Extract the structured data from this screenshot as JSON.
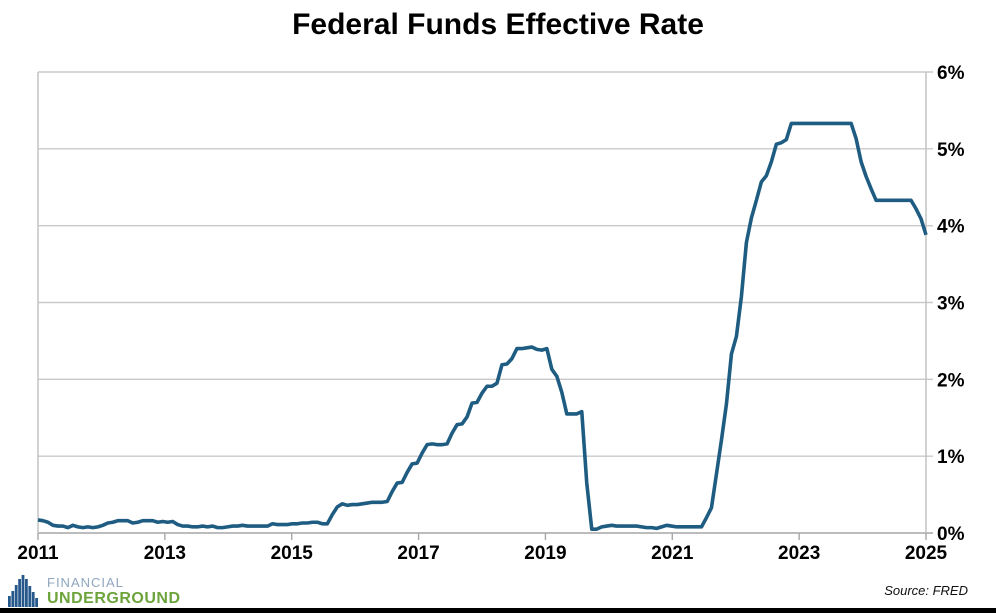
{
  "page": {
    "title": "Federal Funds Effective Rate",
    "source_note": "Source: FRED"
  },
  "logo": {
    "line1": "FINANCIAL",
    "line2": "UNDERGROUND",
    "icon": "bar-skyline-icon",
    "icon_color": "#26588C",
    "line1_color": "#8FA6BF",
    "line2_color": "#6CA43B"
  },
  "colors": {
    "line": "#1F5C82",
    "gridline": "#C9C9C9",
    "axis_border": "#BFBFBF",
    "axis_line": "#A6A6A6",
    "tick": "#A6A6A6",
    "label": "#000000",
    "footer_bar": "#000000"
  },
  "chart_data": {
    "type": "line",
    "title": "Federal Funds Effective Rate",
    "xlabel": "",
    "ylabel": "",
    "ylim": [
      0,
      6
    ],
    "xlim": [
      "2011-01",
      "2025-11"
    ],
    "grid": "horizontal",
    "legend": "none",
    "source": "Source: FRED",
    "x_tick_labels": [
      "2011",
      "2013",
      "2015",
      "2017",
      "2019",
      "2021",
      "2023",
      "2025"
    ],
    "y_tick_labels": [
      "6%",
      "5%",
      "4%",
      "3%",
      "2%",
      "1%",
      "0%"
    ],
    "series": [
      {
        "name": "Federal Funds Effective Rate",
        "unit": "percent",
        "frequency": "monthly",
        "start": "2011-01",
        "end": "2025-11",
        "values": [
          0.17,
          0.16,
          0.14,
          0.1,
          0.09,
          0.09,
          0.07,
          0.1,
          0.08,
          0.07,
          0.08,
          0.07,
          0.08,
          0.1,
          0.13,
          0.14,
          0.16,
          0.16,
          0.16,
          0.13,
          0.14,
          0.16,
          0.16,
          0.16,
          0.14,
          0.15,
          0.14,
          0.15,
          0.11,
          0.09,
          0.09,
          0.08,
          0.08,
          0.09,
          0.08,
          0.09,
          0.07,
          0.07,
          0.08,
          0.09,
          0.09,
          0.1,
          0.09,
          0.09,
          0.09,
          0.09,
          0.09,
          0.12,
          0.11,
          0.11,
          0.11,
          0.12,
          0.12,
          0.13,
          0.13,
          0.14,
          0.14,
          0.12,
          0.12,
          0.24,
          0.34,
          0.38,
          0.36,
          0.37,
          0.37,
          0.38,
          0.39,
          0.4,
          0.4,
          0.4,
          0.41,
          0.54,
          0.65,
          0.66,
          0.79,
          0.9,
          0.91,
          1.04,
          1.15,
          1.16,
          1.15,
          1.15,
          1.16,
          1.3,
          1.41,
          1.42,
          1.51,
          1.69,
          1.7,
          1.82,
          1.91,
          1.91,
          1.95,
          2.19,
          2.2,
          2.27,
          2.4,
          2.4,
          2.41,
          2.42,
          2.39,
          2.38,
          2.4,
          2.13,
          2.04,
          1.83,
          1.55,
          1.55,
          1.55,
          1.58,
          0.65,
          0.05,
          0.05,
          0.08,
          0.09,
          0.1,
          0.09,
          0.09,
          0.09,
          0.09,
          0.09,
          0.08,
          0.07,
          0.07,
          0.06,
          0.08,
          0.1,
          0.09,
          0.08,
          0.08,
          0.08,
          0.08,
          0.08,
          0.08,
          0.2,
          0.33,
          0.77,
          1.21,
          1.68,
          2.33,
          2.56,
          3.08,
          3.78,
          4.1,
          4.33,
          4.57,
          4.65,
          4.83,
          5.06,
          5.08,
          5.12,
          5.33,
          5.33,
          5.33,
          5.33,
          5.33,
          5.33,
          5.33,
          5.33,
          5.33,
          5.33,
          5.33,
          5.33,
          5.33,
          5.13,
          4.83,
          4.64,
          4.48,
          4.33,
          4.33,
          4.33,
          4.33,
          4.33,
          4.33,
          4.33,
          4.33,
          4.22,
          4.09,
          3.88
        ]
      }
    ]
  }
}
